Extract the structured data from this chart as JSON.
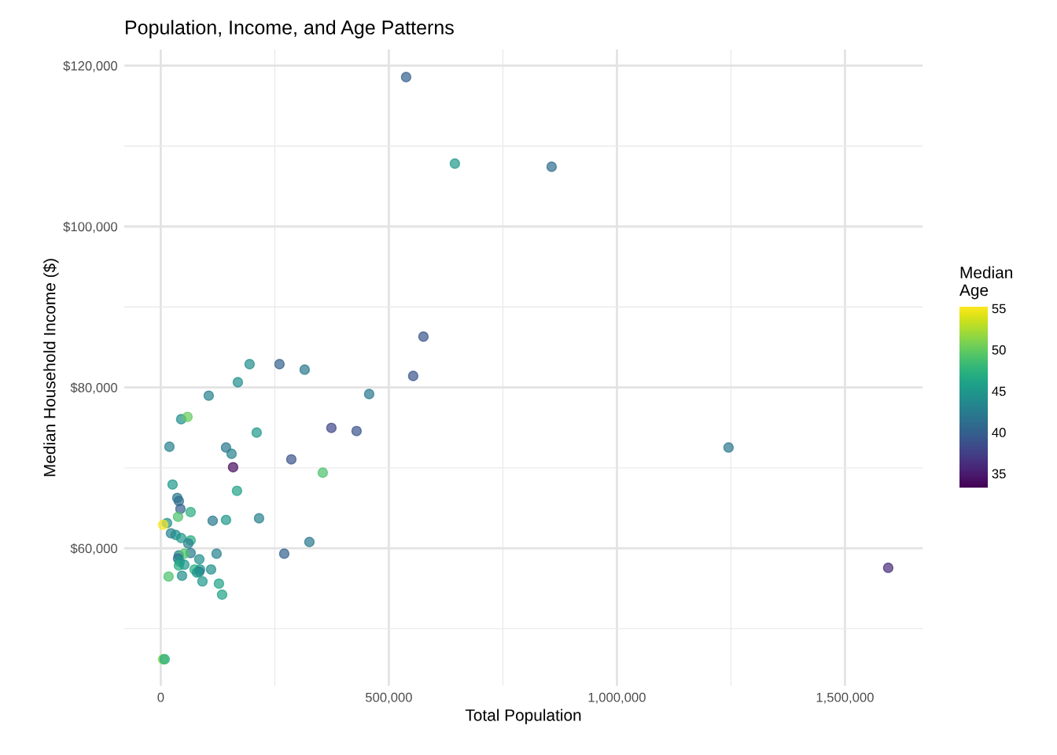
{
  "chart_data": {
    "type": "scatter",
    "title": "Population, Income, and Age Patterns",
    "xlabel": "Total Population",
    "ylabel": "Median Household Income ($)",
    "clabel": "Median\nAge",
    "x": [
      537900,
      644800,
      856900,
      575900,
      553400,
      456900,
      374100,
      429300,
      286200,
      355200,
      315500,
      260300,
      194800,
      169000,
      105200,
      210300,
      44800,
      58600,
      19000,
      143100,
      155200,
      158600,
      167200,
      25900,
      36200,
      39700,
      43100,
      65500,
      37900,
      13800,
      5200,
      113800,
      143100,
      215500,
      325900,
      22400,
      32800,
      44800,
      65500,
      60300,
      122400,
      270700,
      65500,
      39700,
      51700,
      37900,
      84500,
      41400,
      39700,
      51700,
      74100,
      86200,
      110300,
      84500,
      79300,
      46600,
      17200,
      91400,
      127600,
      134500,
      5200,
      8600,
      1244800,
      1594800
    ],
    "values": [
      118580,
      107820,
      107430,
      86310,
      81420,
      79170,
      74960,
      74570,
      71050,
      69390,
      82200,
      82890,
      82890,
      80640,
      78970,
      74380,
      76040,
      76330,
      72620,
      72520,
      71740,
      70070,
      67140,
      67920,
      66260,
      65870,
      64890,
      64500,
      63910,
      63130,
      62930,
      63420,
      63520,
      63720,
      60780,
      61860,
      61660,
      61270,
      60980,
      60590,
      59320,
      59320,
      59410,
      59120,
      59320,
      58730,
      58630,
      58340,
      57850,
      57950,
      57360,
      57360,
      57360,
      57070,
      56970,
      56580,
      56480,
      55890,
      55600,
      54230,
      46210,
      46210,
      72520,
      57560
    ],
    "cvalues": [
      40,
      45,
      41,
      39,
      39,
      42,
      38,
      39,
      39,
      49,
      42,
      40,
      44,
      44,
      43,
      45,
      44,
      50,
      43,
      42,
      43,
      34,
      46,
      45,
      42,
      41,
      40,
      47,
      49,
      44,
      55,
      42,
      45,
      43,
      42,
      43,
      44,
      45,
      47,
      43,
      43,
      40,
      42,
      43,
      49,
      41,
      44,
      45,
      47,
      45,
      47,
      45,
      44,
      42,
      45,
      44,
      49,
      45,
      46,
      46,
      51,
      47,
      42,
      36
    ],
    "clim": [
      33.3,
      55.2
    ],
    "cticks": [
      35,
      40,
      45,
      50,
      55
    ],
    "xlim": [
      -80000,
      1670000
    ],
    "xticks": [
      0,
      {
        "value": 500000,
        "label": "500,000"
      },
      {
        "value": 1000000,
        "label": "1,000,000"
      },
      {
        "value": 1500000,
        "label": "1,500,000"
      }
    ],
    "ylim": [
      42900,
      122000
    ],
    "yticks": [
      {
        "value": 60000,
        "label": "$60,000"
      },
      {
        "value": 80000,
        "label": "$80,000"
      },
      {
        "value": 100000,
        "label": "$100,000"
      },
      {
        "value": 120000,
        "label": "$120,000"
      }
    ],
    "grid": true,
    "legend": false
  }
}
